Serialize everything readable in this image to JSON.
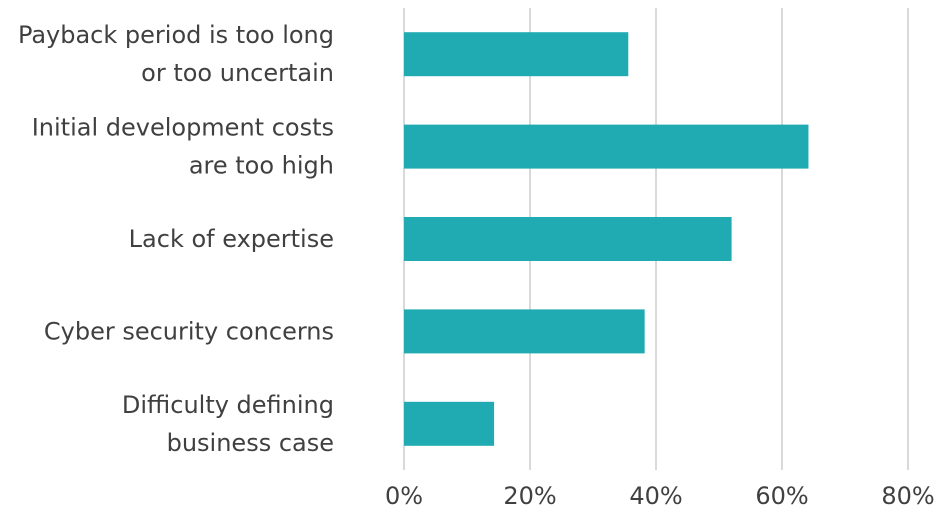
{
  "chart_data": {
    "type": "bar",
    "orientation": "horizontal",
    "title": "",
    "xlabel": "",
    "ylabel": "",
    "categories": [
      [
        "Payback period is too long",
        "or too uncertain"
      ],
      [
        "Initial development costs",
        "are too high"
      ],
      [
        "Lack of expertise"
      ],
      [
        "Cyber security concerns"
      ],
      [
        "Difficulty defining",
        "business case"
      ]
    ],
    "values": [
      35.6,
      64.2,
      52.0,
      38.2,
      14.3
    ],
    "xlim": [
      0,
      80
    ],
    "xticks": [
      0,
      20,
      40,
      60,
      80
    ],
    "xtick_labels": [
      "0%",
      "20%",
      "40%",
      "60%",
      "80%"
    ],
    "grid": "vertical",
    "legend": "none",
    "bar_color": "#20abb3"
  }
}
